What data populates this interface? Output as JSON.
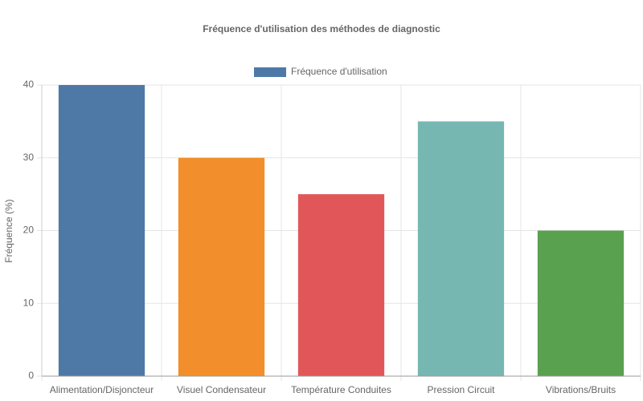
{
  "chart_data": {
    "type": "bar",
    "title": "Fréquence d'utilisation des méthodes de diagnostic",
    "y_label": "Fréquence (%)",
    "categories": [
      "Alimentation/Disjoncteur",
      "Visuel Condensateur",
      "Température Conduites",
      "Pression Circuit",
      "Vibrations/Bruits"
    ],
    "series": [
      {
        "name": "Fréquence d'utilisation",
        "color": "#4e79a7",
        "values": [
          40,
          30,
          25,
          35,
          20
        ],
        "colors": [
          "#4e79a7",
          "#f28e2b",
          "#e15759",
          "#76b7b2",
          "#59a14f"
        ]
      }
    ],
    "ylim": [
      0,
      40
    ],
    "yticks": [
      0,
      10,
      20,
      30,
      40
    ],
    "grid": true,
    "legend": "top"
  }
}
